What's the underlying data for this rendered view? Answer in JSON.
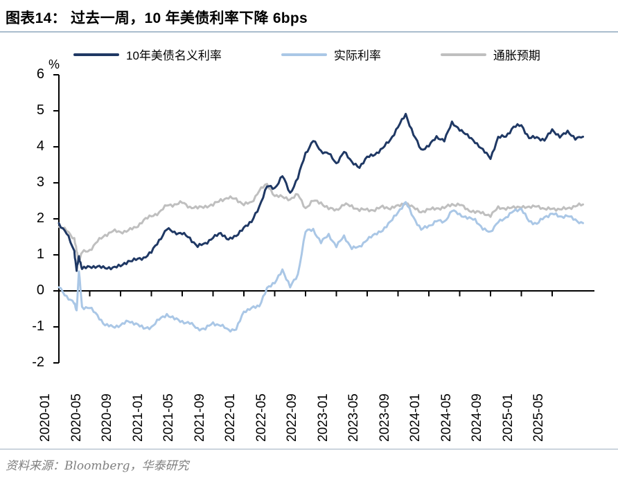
{
  "page": {
    "title": "图表14： 过去一周，10 年美债利率下降 6bps",
    "source": "资料来源：Bloomberg，华泰研究"
  },
  "chart_data": {
    "type": "line",
    "title": "过去一周，10 年美债利率下降 6bps",
    "y_unit_label": "%",
    "ylim": [
      -2,
      6
    ],
    "y_ticks": [
      6,
      5,
      4,
      3,
      2,
      1,
      0,
      -1,
      -2
    ],
    "grid": false,
    "legend_position": "top",
    "x_axis_note": "months since 2020-01, axis crosses at y=0, tick labels every 4 months",
    "x_tick_months": [
      0,
      4,
      8,
      12,
      16,
      20,
      24,
      28,
      32,
      36,
      40,
      44,
      48,
      52,
      56,
      60,
      64
    ],
    "x_tick_labels": [
      "2020-01",
      "2020-05",
      "2020-09",
      "2021-01",
      "2021-05",
      "2021-09",
      "2022-01",
      "2022-05",
      "2022-09",
      "2023-01",
      "2023-05",
      "2023-09",
      "2024-01",
      "2024-05",
      "2024-09",
      "2025-01",
      "2025-05"
    ],
    "x_months": [
      0,
      1,
      2,
      2.3,
      2.6,
      3,
      4,
      5,
      6,
      7,
      8,
      9,
      10,
      11,
      12,
      13,
      14,
      15,
      16,
      17,
      18,
      19,
      20,
      21,
      22,
      23,
      24,
      25,
      26,
      27,
      28,
      29,
      30,
      31,
      32,
      33,
      34,
      35,
      36,
      37,
      38,
      39,
      40,
      41,
      42,
      43,
      44,
      45,
      46,
      47,
      48,
      49,
      50,
      51,
      52,
      53,
      54,
      55,
      56,
      57,
      58,
      59,
      60,
      61,
      62,
      63,
      64,
      65,
      66,
      67,
      68
    ],
    "series": [
      {
        "name": "10年美债名义利率",
        "color": "#1f3864",
        "values": [
          1.88,
          1.6,
          1.1,
          0.57,
          0.95,
          0.62,
          0.66,
          0.69,
          0.62,
          0.66,
          0.68,
          0.83,
          0.86,
          0.92,
          1.07,
          1.4,
          1.72,
          1.62,
          1.6,
          1.45,
          1.25,
          1.3,
          1.5,
          1.58,
          1.45,
          1.5,
          1.78,
          1.9,
          2.35,
          2.9,
          2.85,
          3.2,
          2.7,
          3.15,
          3.8,
          4.2,
          3.85,
          3.85,
          3.5,
          3.9,
          3.55,
          3.45,
          3.7,
          3.8,
          3.95,
          4.2,
          4.55,
          4.9,
          4.35,
          3.9,
          4.05,
          4.25,
          4.2,
          4.65,
          4.5,
          4.3,
          4.15,
          3.9,
          3.7,
          4.25,
          4.3,
          4.55,
          4.6,
          4.25,
          4.25,
          4.2,
          4.45,
          4.3,
          4.4,
          4.25,
          4.28
        ]
      },
      {
        "name": "实际利率",
        "color": "#aac7e6",
        "values": [
          0.1,
          -0.15,
          -0.35,
          -0.55,
          0.55,
          -0.45,
          -0.47,
          -0.68,
          -0.95,
          -1.0,
          -0.95,
          -0.85,
          -0.9,
          -1.05,
          -1.0,
          -0.8,
          -0.65,
          -0.78,
          -0.85,
          -0.9,
          -1.05,
          -1.05,
          -0.9,
          -0.95,
          -1.1,
          -1.05,
          -0.6,
          -0.45,
          -0.45,
          0.1,
          0.2,
          0.6,
          0.1,
          0.45,
          1.65,
          1.7,
          1.35,
          1.55,
          1.25,
          1.5,
          1.2,
          1.2,
          1.45,
          1.55,
          1.7,
          1.9,
          2.2,
          2.45,
          2.05,
          1.7,
          1.8,
          1.95,
          1.9,
          2.25,
          2.1,
          2.05,
          1.95,
          1.75,
          1.6,
          1.95,
          2.0,
          2.25,
          2.25,
          1.95,
          1.85,
          2.05,
          2.15,
          2.05,
          2.1,
          1.95,
          1.88
        ]
      },
      {
        "name": "通胀预期",
        "color": "#bfbfbf",
        "values": [
          1.78,
          1.68,
          1.45,
          1.1,
          0.82,
          1.07,
          1.13,
          1.37,
          1.55,
          1.66,
          1.63,
          1.68,
          1.76,
          1.97,
          2.07,
          2.18,
          2.37,
          2.4,
          2.45,
          2.33,
          2.3,
          2.35,
          2.38,
          2.53,
          2.58,
          2.55,
          2.4,
          2.45,
          2.8,
          2.95,
          2.65,
          2.6,
          2.55,
          2.67,
          2.3,
          2.5,
          2.45,
          2.28,
          2.25,
          2.4,
          2.35,
          2.25,
          2.25,
          2.25,
          2.33,
          2.3,
          2.35,
          2.45,
          2.3,
          2.2,
          2.25,
          2.3,
          2.3,
          2.4,
          2.4,
          2.25,
          2.2,
          2.15,
          2.1,
          2.3,
          2.3,
          2.3,
          2.35,
          2.3,
          2.38,
          2.25,
          2.3,
          2.25,
          2.3,
          2.35,
          2.4
        ]
      }
    ]
  }
}
